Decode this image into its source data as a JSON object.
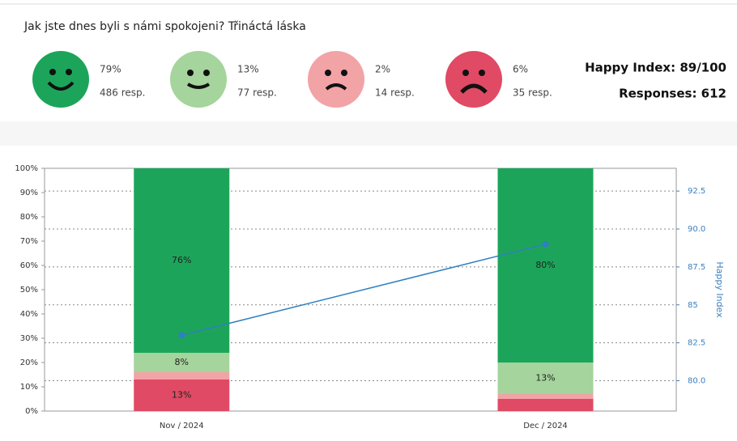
{
  "header": {
    "title": "Jak jste dnes byli s námi spokojeni? Třináctá láska",
    "faces": [
      {
        "percent": "79%",
        "responses": "486 resp."
      },
      {
        "percent": "13%",
        "responses": "77 resp."
      },
      {
        "percent": "2%",
        "responses": "14 resp."
      },
      {
        "percent": "6%",
        "responses": "35 resp."
      }
    ],
    "happy_index": "Happy Index: 89/100",
    "responses": "Responses: 612"
  },
  "chart_data": {
    "type": "bar",
    "stacked": true,
    "categories": [
      "Nov / 2024",
      "Dec / 2024"
    ],
    "series": [
      {
        "color": "#e04a64",
        "values": [
          13,
          5
        ],
        "value_labels": [
          "13%",
          null
        ]
      },
      {
        "color": "#f2a3a6",
        "values": [
          3,
          2
        ],
        "value_labels": [
          null,
          null
        ]
      },
      {
        "color": "#a5d49c",
        "values": [
          8,
          13
        ],
        "value_labels": [
          "8%",
          "13%"
        ]
      },
      {
        "color": "#1ca55a",
        "values": [
          76,
          80
        ],
        "value_labels": [
          "76%",
          "80%"
        ]
      }
    ],
    "line": {
      "axis": "y2",
      "color": "#2f7fc1",
      "values": [
        83,
        89
      ]
    },
    "ylim": [
      0,
      100
    ],
    "yticks": [
      {
        "value": 0,
        "label": "0%"
      },
      {
        "value": 10,
        "label": "10%"
      },
      {
        "value": 20,
        "label": "20%"
      },
      {
        "value": 30,
        "label": "30%"
      },
      {
        "value": 40,
        "label": "40%"
      },
      {
        "value": 50,
        "label": "50%"
      },
      {
        "value": 60,
        "label": "60%"
      },
      {
        "value": 70,
        "label": "70%"
      },
      {
        "value": 80,
        "label": "80%"
      },
      {
        "value": 90,
        "label": "90%"
      },
      {
        "value": 100,
        "label": "100%"
      }
    ],
    "y2lim": [
      78,
      94
    ],
    "y2ticks": [
      {
        "value": 80,
        "label": "80.0"
      },
      82.5,
      85,
      87.5,
      {
        "value": 90,
        "label": "90.0"
      },
      92.5
    ],
    "y2label": "Happy Index",
    "y2color": "#3a7fc1",
    "grid": "y2"
  }
}
